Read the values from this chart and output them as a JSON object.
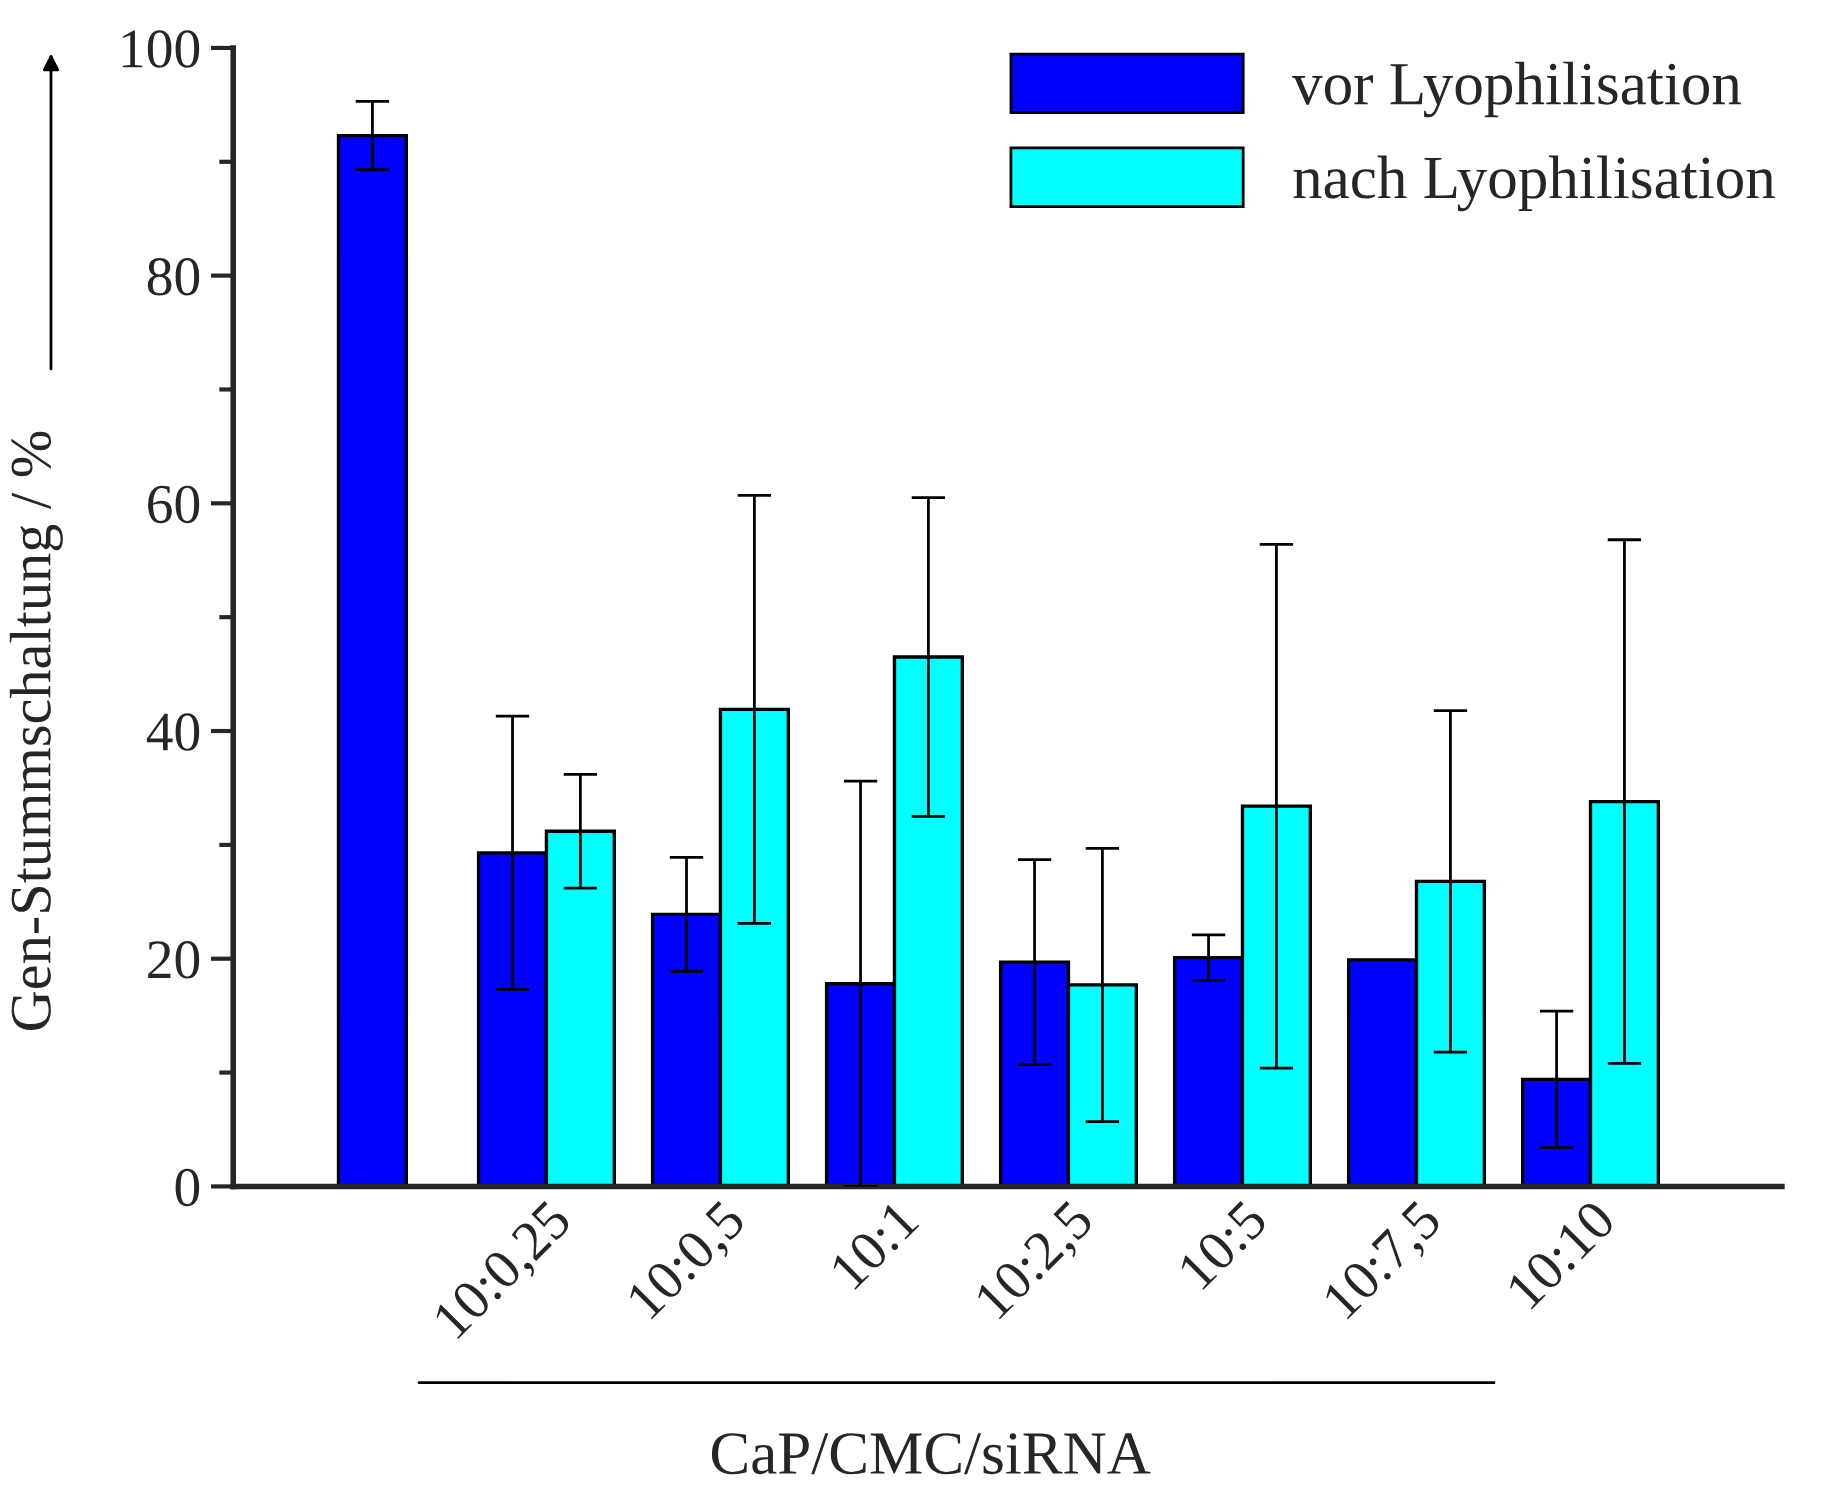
{
  "chart_data": {
    "type": "bar",
    "ylabel": "Gen-Stummschaltung / %",
    "xlabel": "CaP/CMC/siRNA",
    "categories": [
      null,
      "10:0,25",
      "10:0,5",
      "10:1",
      "10:2,5",
      "10:5",
      "10:7,5",
      "10:10"
    ],
    "series": [
      {
        "name": "vor Lyophilisation",
        "color": "#0000ff",
        "values": [
          92.3,
          29.3,
          23.9,
          17.8,
          19.7,
          20.1,
          19.9,
          9.4
        ],
        "errors": [
          3,
          12,
          5,
          17.8,
          9,
          2,
          null,
          6
        ]
      },
      {
        "name": "nach Lyophilisation",
        "color": "#00ffff",
        "values": [
          null,
          31.2,
          41.9,
          46.5,
          17.7,
          33.4,
          26.8,
          33.8
        ],
        "errors": [
          null,
          5,
          18.8,
          14,
          12,
          23,
          15,
          23
        ]
      }
    ],
    "ylim": [
      0,
      100
    ],
    "yticks": [
      0,
      20,
      40,
      60,
      80,
      100
    ],
    "grid": false,
    "legend": "top right"
  }
}
